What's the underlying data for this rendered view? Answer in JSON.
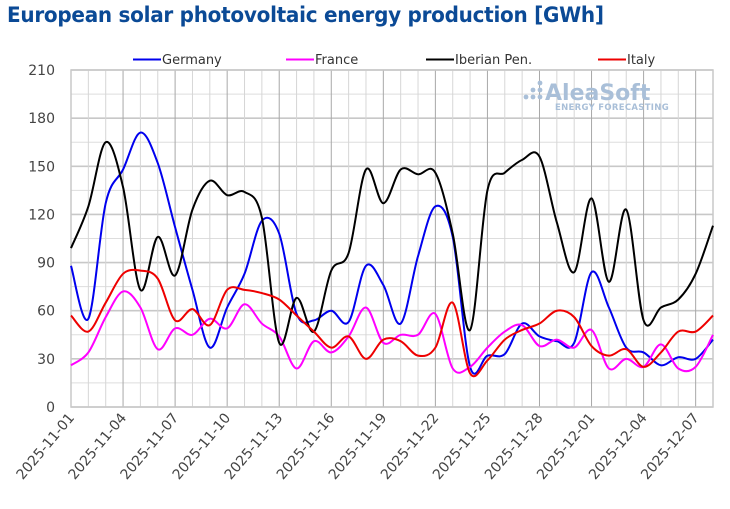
{
  "chart_data": {
    "type": "line",
    "title": "European solar photovoltaic energy production [GWh]",
    "xlabel": "",
    "ylabel": "",
    "ylim": [
      0,
      210
    ],
    "yticks": [
      0,
      30,
      60,
      90,
      120,
      150,
      180,
      210
    ],
    "y_minor_step": 15,
    "grid": true,
    "legend_position": "top",
    "watermark": {
      "main": "AleaSoft",
      "sub": "ENERGY FORECASTING"
    },
    "x": [
      "2025-11-01",
      "2025-11-02",
      "2025-11-03",
      "2025-11-04",
      "2025-11-05",
      "2025-11-06",
      "2025-11-07",
      "2025-11-08",
      "2025-11-09",
      "2025-11-10",
      "2025-11-11",
      "2025-11-12",
      "2025-11-13",
      "2025-11-14",
      "2025-11-15",
      "2025-11-16",
      "2025-11-17",
      "2025-11-18",
      "2025-11-19",
      "2025-11-20",
      "2025-11-21",
      "2025-11-22",
      "2025-11-23",
      "2025-11-24",
      "2025-11-25",
      "2025-11-26",
      "2025-11-27",
      "2025-11-28",
      "2025-11-29",
      "2025-11-30",
      "2025-12-01",
      "2025-12-02",
      "2025-12-03",
      "2025-12-04",
      "2025-12-05",
      "2025-12-06",
      "2025-12-07",
      "2025-12-08"
    ],
    "x_tick_labels": [
      "2025-11-01",
      "2025-11-04",
      "2025-11-07",
      "2025-11-10",
      "2025-11-13",
      "2025-11-16",
      "2025-11-19",
      "2025-11-22",
      "2025-11-25",
      "2025-11-28",
      "2025-12-01",
      "2025-12-04",
      "2025-12-07"
    ],
    "series": [
      {
        "name": "Germany",
        "color": "#0000ee",
        "values": [
          88,
          55,
          127,
          148,
          171,
          152,
          112,
          73,
          37,
          62,
          83,
          116,
          108,
          58,
          54,
          60,
          53,
          88,
          76,
          52,
          94,
          125,
          106,
          25,
          32,
          33,
          52,
          44,
          41,
          40,
          84,
          62,
          37,
          34,
          26,
          31,
          30,
          42
        ]
      },
      {
        "name": "France",
        "color": "#ff00ff",
        "values": [
          26,
          34,
          56,
          72,
          62,
          36,
          49,
          45,
          55,
          49,
          64,
          52,
          44,
          24,
          41,
          34,
          44,
          62,
          40,
          45,
          45,
          58,
          24,
          25,
          37,
          47,
          51,
          38,
          42,
          37,
          48,
          24,
          30,
          25,
          39,
          24,
          25,
          45
        ]
      },
      {
        "name": "Iberian Pen.",
        "color": "#000000",
        "values": [
          99,
          125,
          165,
          137,
          73,
          106,
          82,
          123,
          141,
          132,
          134,
          118,
          40,
          68,
          47,
          85,
          96,
          148,
          127,
          148,
          145,
          146,
          108,
          48,
          135,
          146,
          154,
          156,
          115,
          84,
          130,
          78,
          123,
          54,
          62,
          67,
          83,
          113
        ]
      },
      {
        "name": "Italy",
        "color": "#ee0000",
        "values": [
          57,
          47,
          65,
          83,
          85,
          80,
          54,
          61,
          51,
          73,
          73,
          71,
          67,
          57,
          47,
          37,
          44,
          30,
          42,
          41,
          32,
          37,
          65,
          21,
          29,
          42,
          48,
          52,
          60,
          56,
          38,
          32,
          36,
          25,
          34,
          47,
          47,
          57
        ]
      }
    ]
  }
}
